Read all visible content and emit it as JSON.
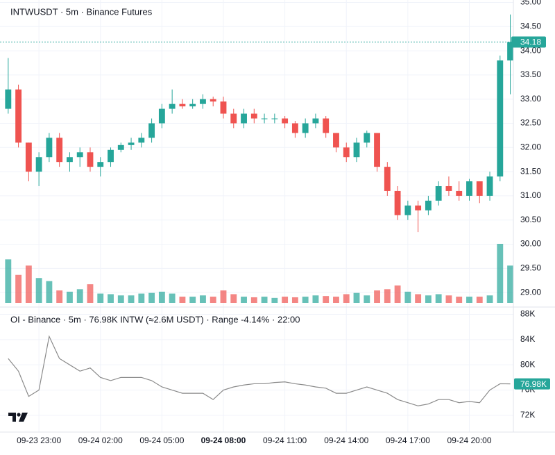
{
  "chart_data": [
    {
      "type": "candlestick",
      "title": "INTWUSDT · 5m · Binance Futures",
      "up_color": "#26a69a",
      "down_color": "#ef5350",
      "open": [
        32.8,
        33.2,
        32.1,
        31.5,
        31.8,
        32.2,
        31.7,
        31.8,
        31.9,
        31.6,
        31.7,
        31.95,
        32.05,
        32.1,
        32.2,
        32.5,
        32.8,
        32.9,
        32.85,
        32.9,
        33.0,
        32.95,
        32.7,
        32.5,
        32.7,
        32.6,
        32.6,
        32.6,
        32.5,
        32.3,
        32.5,
        32.6,
        32.3,
        32.0,
        31.8,
        32.1,
        32.3,
        31.6,
        31.1,
        30.6,
        30.8,
        30.7,
        30.9,
        31.2,
        31.1,
        31.0,
        31.3,
        31.0,
        31.4,
        33.8
      ],
      "high": [
        33.85,
        33.3,
        32.1,
        31.9,
        32.3,
        32.3,
        31.9,
        32.0,
        32.0,
        31.8,
        32.0,
        32.1,
        32.2,
        32.3,
        32.6,
        32.9,
        33.2,
        33.0,
        33.0,
        33.1,
        33.05,
        33.05,
        32.8,
        32.8,
        32.8,
        32.7,
        32.7,
        32.65,
        32.55,
        32.6,
        32.7,
        32.65,
        32.3,
        32.1,
        32.2,
        32.35,
        32.3,
        31.7,
        31.2,
        30.9,
        30.9,
        31.0,
        31.3,
        31.4,
        31.3,
        31.35,
        31.3,
        31.5,
        33.9,
        34.75
      ],
      "low": [
        32.7,
        32.0,
        31.3,
        31.2,
        31.7,
        31.6,
        31.5,
        31.6,
        31.5,
        31.4,
        31.6,
        31.9,
        31.95,
        32.0,
        32.1,
        32.4,
        32.7,
        32.8,
        32.8,
        32.8,
        32.85,
        32.6,
        32.4,
        32.4,
        32.5,
        32.5,
        32.5,
        32.4,
        32.2,
        32.2,
        32.4,
        32.2,
        31.9,
        31.7,
        31.7,
        32.0,
        31.5,
        31.0,
        30.5,
        30.5,
        30.25,
        30.6,
        30.8,
        31.0,
        30.9,
        30.9,
        30.85,
        30.9,
        31.3,
        33.1
      ],
      "close": [
        33.2,
        32.1,
        31.5,
        31.8,
        32.2,
        31.7,
        31.8,
        31.9,
        31.6,
        31.7,
        31.95,
        32.05,
        32.1,
        32.2,
        32.5,
        32.8,
        32.9,
        32.85,
        32.9,
        33.0,
        32.95,
        32.7,
        32.5,
        32.7,
        32.6,
        32.6,
        32.6,
        32.5,
        32.3,
        32.5,
        32.6,
        32.3,
        32.0,
        31.8,
        32.1,
        32.3,
        31.6,
        31.1,
        30.6,
        30.8,
        30.7,
        30.9,
        31.2,
        31.1,
        31.0,
        31.3,
        31.0,
        31.4,
        33.8,
        34.18
      ],
      "volume": [
        70,
        45,
        60,
        40,
        35,
        20,
        18,
        22,
        30,
        15,
        14,
        12,
        12,
        15,
        16,
        18,
        15,
        10,
        10,
        12,
        10,
        20,
        14,
        10,
        9,
        10,
        8,
        10,
        9,
        10,
        12,
        11,
        10,
        14,
        16,
        12,
        20,
        22,
        28,
        18,
        14,
        12,
        14,
        12,
        10,
        10,
        10,
        12,
        95,
        60
      ],
      "last_price": 34.18,
      "xlim": [
        -0.8,
        49.3
      ],
      "ylim": [
        28.7,
        35.05
      ],
      "yticks": [
        {
          "value": 29,
          "label": "29.00"
        },
        {
          "value": 29.5,
          "label": "29.50"
        },
        {
          "value": 30,
          "label": "30.00"
        },
        {
          "value": 30.5,
          "label": "30.50"
        },
        {
          "value": 31,
          "label": "31.00"
        },
        {
          "value": 31.5,
          "label": "31.50"
        },
        {
          "value": 32,
          "label": "32.00"
        },
        {
          "value": 32.5,
          "label": "32.50"
        },
        {
          "value": 33,
          "label": "33.00"
        },
        {
          "value": 33.5,
          "label": "33.50"
        },
        {
          "value": 34,
          "label": "34.00"
        },
        {
          "value": 34.5,
          "label": "34.50"
        },
        {
          "value": 35,
          "label": "35.00"
        }
      ],
      "grid": true
    },
    {
      "type": "line",
      "title": "OI - Binance · 5m · 76.98K INTW (≈2.6M USDT) · Range -4.14% · 22:00",
      "color": "#8a8a8a",
      "values": [
        81000,
        79000,
        75000,
        76000,
        84500,
        81000,
        80000,
        79000,
        79500,
        78000,
        77500,
        78000,
        78000,
        78000,
        77500,
        76500,
        76000,
        75500,
        75500,
        75500,
        74500,
        76000,
        76500,
        76800,
        77000,
        77000,
        77200,
        77300,
        77000,
        76800,
        76500,
        76300,
        75500,
        75500,
        76000,
        76500,
        76000,
        75500,
        74500,
        74000,
        73500,
        73800,
        74500,
        74500,
        74000,
        74200,
        74000,
        76000,
        77000,
        76980
      ],
      "last_value": 76980,
      "last_value_label": "76.98K",
      "last_color": "#26a69a",
      "xlim": [
        -0.8,
        49.3
      ],
      "ylim": [
        69350,
        89150
      ],
      "yticks": [
        {
          "value": 72000,
          "label": "72K"
        },
        {
          "value": 76000,
          "label": "76K"
        },
        {
          "value": 80000,
          "label": "80K"
        },
        {
          "value": 84000,
          "label": "84K"
        },
        {
          "value": 88000,
          "label": "88K"
        }
      ],
      "xticks": [
        {
          "value": 3,
          "label": "09-23 23:00"
        },
        {
          "value": 9,
          "label": "09-24 02:00"
        },
        {
          "value": 15,
          "label": "09-24 05:00"
        },
        {
          "value": 21,
          "label": "09-24 08:00",
          "bold": true
        },
        {
          "value": 27,
          "label": "09-24 11:00"
        },
        {
          "value": 33,
          "label": "09-24 14:00"
        },
        {
          "value": 39,
          "label": "09-24 17:00"
        },
        {
          "value": 45,
          "label": "09-24 20:00"
        }
      ],
      "grid": true
    }
  ]
}
